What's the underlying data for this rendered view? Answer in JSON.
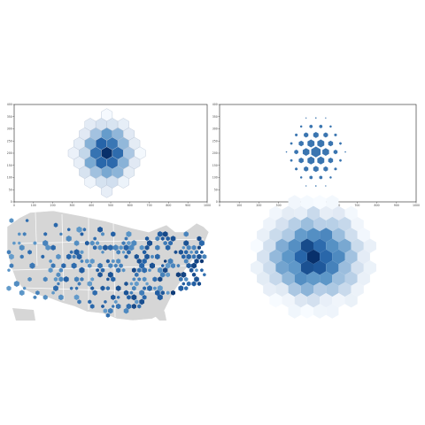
{
  "colors": {
    "light": "#dfe8f3",
    "mid": "#6a9cc9",
    "dark": "#08306b",
    "size_hex": "#3a75b0",
    "map_land": "#d6d6d6",
    "map_border": "#ffffff",
    "map_dot_dark": "#1f3d63"
  },
  "chart_data": [
    {
      "type": "heatmap",
      "subtype": "hexbin-density",
      "panel": "top-left",
      "xlim": [
        0,
        1000
      ],
      "ylim": [
        0,
        400
      ],
      "x_ticks": [
        "0",
        "100",
        "200",
        "300",
        "400",
        "500",
        "600",
        "700",
        "800",
        "900",
        "1000"
      ],
      "y_ticks": [
        "0",
        "50",
        "100",
        "150",
        "200",
        "250",
        "300",
        "350",
        "400"
      ],
      "center": [
        480,
        200
      ],
      "spread": [
        150,
        140
      ],
      "color_scale": "Blues"
    },
    {
      "type": "scatter",
      "subtype": "hexbin-size",
      "panel": "top-right",
      "xlim": [
        0,
        1000
      ],
      "ylim": [
        0,
        400
      ],
      "x_ticks": [
        "0",
        "100",
        "200",
        "300",
        "400",
        "500",
        "600",
        "700",
        "800",
        "900",
        "1000"
      ],
      "y_ticks": [
        "0",
        "50",
        "100",
        "150",
        "200",
        "250",
        "300",
        "350",
        "400"
      ],
      "center": [
        490,
        205
      ],
      "spread": [
        140,
        130
      ],
      "color": "#3a75b0"
    },
    {
      "type": "heatmap",
      "subtype": "hexbin-map",
      "panel": "bottom-left",
      "region": "contiguous United States",
      "color_scale": "Blues"
    },
    {
      "type": "heatmap",
      "subtype": "hexbin-density-no-axes",
      "panel": "bottom-right",
      "center": [
        0,
        0
      ],
      "spread": [
        1,
        1
      ],
      "color_scale": "Blues"
    }
  ]
}
